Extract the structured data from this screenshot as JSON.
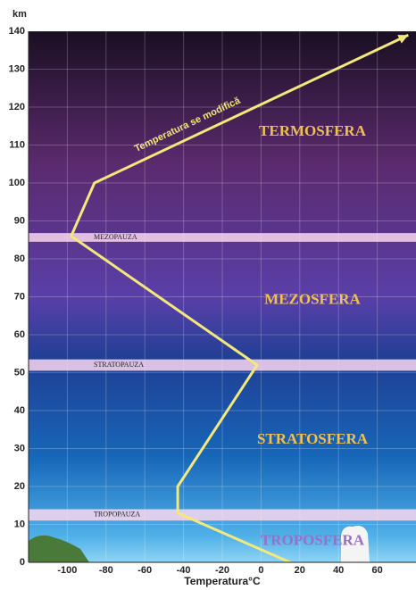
{
  "chart_data": {
    "type": "line",
    "y_unit": "km",
    "xlabel": "Temperatura°C",
    "annotation": "Temperatura se modifică",
    "x": [
      15,
      -43,
      -43,
      -2,
      -98,
      -86,
      76
    ],
    "values": [
      0,
      13,
      20,
      52,
      86,
      100,
      139
    ],
    "color": "#f3e87c",
    "xlim": [
      -120,
      80
    ],
    "ylim": [
      0,
      140
    ],
    "xticks": [
      -100,
      -80,
      -60,
      -40,
      -20,
      0,
      20,
      40,
      60
    ],
    "yticks": [
      0,
      10,
      20,
      30,
      40,
      50,
      60,
      70,
      80,
      90,
      100,
      110,
      120,
      130,
      140
    ],
    "grid": true,
    "pauses": [
      {
        "name": "TROPOPAUZA",
        "range": [
          11,
          14
        ]
      },
      {
        "name": "STRATOPAUZA",
        "range": [
          50.5,
          53.5
        ]
      },
      {
        "name": "MEZOPAUZA",
        "range": [
          84.5,
          86.8
        ]
      }
    ],
    "layers": [
      {
        "name": "TROPOSFERA",
        "color": "#9a6fc8"
      },
      {
        "name": "STRATOSFERA",
        "color": "#f0c050"
      },
      {
        "name": "MEZOSFERA",
        "color": "#f0c050"
      },
      {
        "name": "TERMOSFERA",
        "color": "#f0c050"
      }
    ]
  }
}
